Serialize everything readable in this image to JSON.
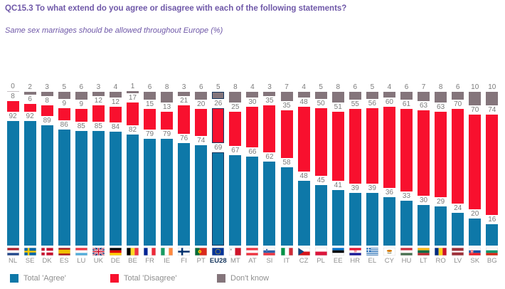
{
  "header": {
    "title": "QC15.3 To what extend do you agree or disagree with each of the following statements?",
    "subtitle": "Same sex marriages should be allowed throughout Europe (%)"
  },
  "chart_data": {
    "type": "bar",
    "stacked": true,
    "percent_total": 100,
    "unit": "%",
    "legend_position": "bottom",
    "grid": false,
    "highlighted_category": "EU28",
    "categories": [
      "NL",
      "SE",
      "DK",
      "ES",
      "LU",
      "UK",
      "DE",
      "BE",
      "FR",
      "IE",
      "FI",
      "PT",
      "EU28",
      "MT",
      "AT",
      "SI",
      "IT",
      "CZ",
      "PL",
      "EE",
      "HR",
      "EL",
      "CY",
      "HU",
      "LT",
      "RO",
      "LV",
      "SK",
      "BG"
    ],
    "series": [
      {
        "name": "Total 'Agree'",
        "color": "#0e78a8",
        "values": [
          92,
          92,
          89,
          86,
          85,
          85,
          84,
          82,
          79,
          79,
          76,
          74,
          69,
          67,
          66,
          62,
          58,
          48,
          45,
          41,
          39,
          39,
          36,
          33,
          30,
          29,
          24,
          20,
          16
        ]
      },
      {
        "name": "Total 'Disagree'",
        "color": "#f8102e",
        "values": [
          8,
          6,
          8,
          9,
          9,
          12,
          12,
          17,
          15,
          13,
          21,
          20,
          26,
          25,
          30,
          35,
          35,
          48,
          50,
          51,
          55,
          56,
          60,
          61,
          63,
          63,
          70,
          70,
          74
        ]
      },
      {
        "name": "Don't know",
        "color": "#84757b",
        "values": [
          0,
          2,
          3,
          5,
          6,
          3,
          4,
          1,
          6,
          8,
          3,
          6,
          5,
          8,
          4,
          3,
          7,
          4,
          5,
          8,
          6,
          5,
          4,
          6,
          7,
          8,
          6,
          10,
          10
        ]
      }
    ],
    "flag_icons": [
      "nl-flag-icon",
      "se-flag-icon",
      "dk-flag-icon",
      "es-flag-icon",
      "lu-flag-icon",
      "uk-flag-icon",
      "de-flag-icon",
      "be-flag-icon",
      "fr-flag-icon",
      "ie-flag-icon",
      "fi-flag-icon",
      "pt-flag-icon",
      "eu28-flag-icon",
      "mt-flag-icon",
      "at-flag-icon",
      "si-flag-icon",
      "it-flag-icon",
      "cz-flag-icon",
      "pl-flag-icon",
      "ee-flag-icon",
      "hr-flag-icon",
      "el-flag-icon",
      "cy-flag-icon",
      "hu-flag-icon",
      "lt-flag-icon",
      "ro-flag-icon",
      "lv-flag-icon",
      "sk-flag-icon",
      "bg-flag-icon"
    ]
  },
  "colors": {
    "title_purple": "#6f58a8",
    "agree_blue": "#0e78a8",
    "disagree_red": "#f8102e",
    "dontknow_gray": "#84757b",
    "zero_bar_gray": "#c9c2c5",
    "highlight_navy": "#17375e",
    "value_label_gray": "#7b7b7b",
    "axis_label_gray": "#8f8f8f"
  }
}
